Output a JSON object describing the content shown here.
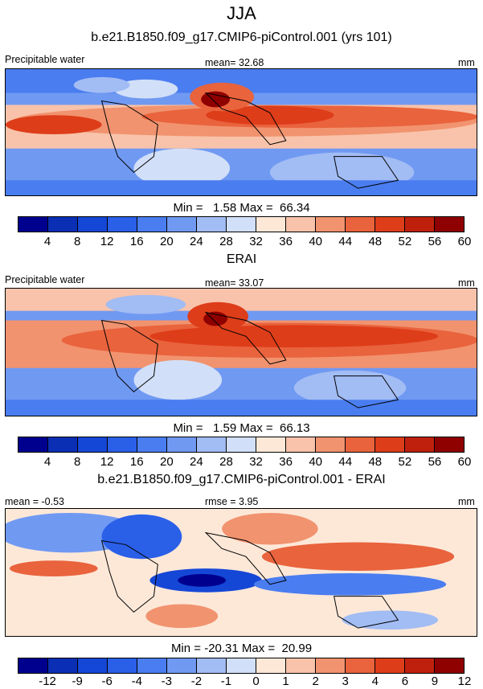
{
  "figure": {
    "season": "JJA",
    "panel1_title": "b.e21.B1850.f09_g17.CMIP6-piControl.001 (yrs 101)",
    "panel2_title": "ERAI",
    "panel3_title": "b.e21.B1850.f09_g17.CMIP6-piControl.001 - ERAI"
  },
  "panels": [
    {
      "variable": "Precipitable water",
      "stat": "mean=  32.68",
      "units": "mm",
      "minmax": "Min =   1.58 Max =  66.34",
      "levels": [
        "4",
        "8",
        "12",
        "16",
        "20",
        "24",
        "28",
        "32",
        "36",
        "40",
        "44",
        "48",
        "52",
        "56",
        "60"
      ]
    },
    {
      "variable": "Precipitable water",
      "stat": "mean=  33.07",
      "units": "mm",
      "minmax": "Min =   1.59 Max =  66.13",
      "levels": [
        "4",
        "8",
        "12",
        "16",
        "20",
        "24",
        "28",
        "32",
        "36",
        "40",
        "44",
        "48",
        "52",
        "56",
        "60"
      ]
    },
    {
      "left_stat": "mean =  -0.53",
      "stat": "rmse =   3.95",
      "units": "mm",
      "minmax": "Min = -20.31 Max =  20.99",
      "levels": [
        "-12",
        "-9",
        "-6",
        "-4",
        "-3",
        "-2",
        "-1",
        "0",
        "1",
        "2",
        "3",
        "4",
        "6",
        "9",
        "12"
      ]
    }
  ],
  "colors": {
    "palette": [
      "#00008f",
      "#0a2fb4",
      "#1547d6",
      "#2a5fe8",
      "#4a7df0",
      "#7099f2",
      "#a2bcf4",
      "#d2dff8",
      "#fde8d8",
      "#f8c3aa",
      "#f1936f",
      "#e9633d",
      "#de3d1a",
      "#bf200e",
      "#8f0000"
    ]
  }
}
